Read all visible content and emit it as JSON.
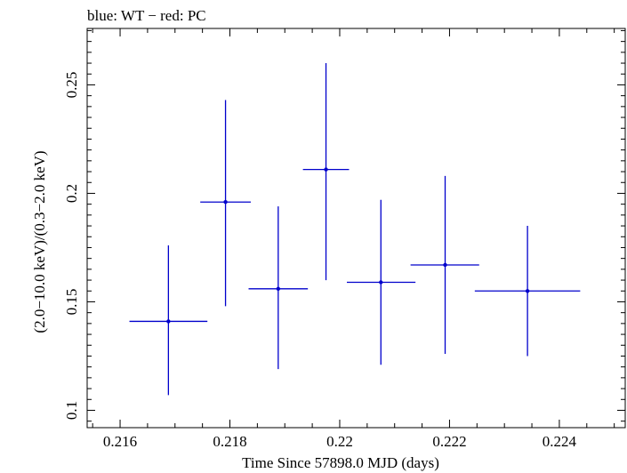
{
  "chart_data": {
    "type": "scatter",
    "title": "blue: WT − red: PC",
    "xlabel": "Time Since 57898.0 MJD (days)",
    "ylabel": "(2.0−10.0 keV)/(0.3−2.0 keV)",
    "xlim": [
      0.2154,
      0.2252
    ],
    "ylim": [
      0.092,
      0.276
    ],
    "xticks": [
      {
        "value": 0.216,
        "label": "0.216"
      },
      {
        "value": 0.218,
        "label": "0.218"
      },
      {
        "value": 0.22,
        "label": "0.22"
      },
      {
        "value": 0.222,
        "label": "0.222"
      },
      {
        "value": 0.224,
        "label": "0.224"
      }
    ],
    "yticks": [
      {
        "value": 0.1,
        "label": "0.1"
      },
      {
        "value": 0.15,
        "label": "0.15"
      },
      {
        "value": 0.2,
        "label": "0.2"
      },
      {
        "value": 0.25,
        "label": "0.25"
      }
    ],
    "series": [
      {
        "name": "WT",
        "color": "#0000cc",
        "points": [
          {
            "x": 0.21688,
            "y": 0.141,
            "xerr": [
              0.00071,
              0.00071
            ],
            "yerr": [
              0.034,
              0.035
            ]
          },
          {
            "x": 0.21792,
            "y": 0.196,
            "xerr": [
              0.00046,
              0.00046
            ],
            "yerr": [
              0.048,
              0.047
            ]
          },
          {
            "x": 0.21888,
            "y": 0.156,
            "xerr": [
              0.00054,
              0.00054
            ],
            "yerr": [
              0.037,
              0.038
            ]
          },
          {
            "x": 0.21975,
            "y": 0.211,
            "xerr": [
              0.00042,
              0.00042
            ],
            "yerr": [
              0.051,
              0.049
            ]
          },
          {
            "x": 0.22075,
            "y": 0.159,
            "xerr": [
              0.00062,
              0.00063
            ],
            "yerr": [
              0.038,
              0.038
            ]
          },
          {
            "x": 0.22192,
            "y": 0.167,
            "xerr": [
              0.00063,
              0.00062
            ],
            "yerr": [
              0.041,
              0.041
            ]
          },
          {
            "x": 0.22342,
            "y": 0.155,
            "xerr": [
              0.00096,
              0.00096
            ],
            "yerr": [
              0.03,
              0.03
            ]
          }
        ]
      }
    ]
  }
}
